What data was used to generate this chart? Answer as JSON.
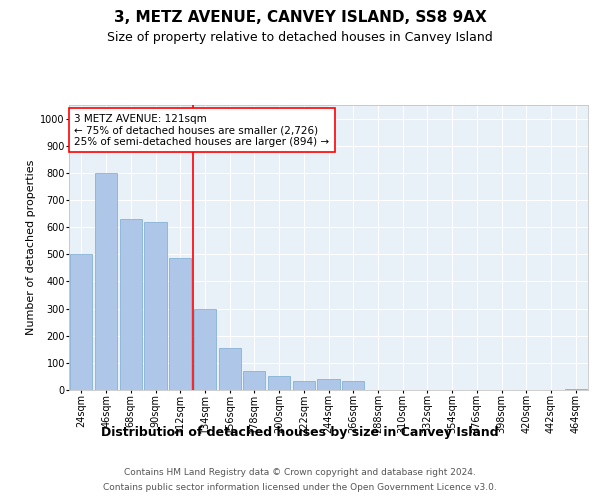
{
  "title": "3, METZ AVENUE, CANVEY ISLAND, SS8 9AX",
  "subtitle": "Size of property relative to detached houses in Canvey Island",
  "xlabel": "Distribution of detached houses by size in Canvey Island",
  "ylabel": "Number of detached properties",
  "footer_line1": "Contains HM Land Registry data © Crown copyright and database right 2024.",
  "footer_line2": "Contains public sector information licensed under the Open Government Licence v3.0.",
  "categories": [
    "24sqm",
    "46sqm",
    "68sqm",
    "90sqm",
    "112sqm",
    "134sqm",
    "156sqm",
    "178sqm",
    "200sqm",
    "222sqm",
    "244sqm",
    "266sqm",
    "288sqm",
    "310sqm",
    "332sqm",
    "354sqm",
    "376sqm",
    "398sqm",
    "420sqm",
    "442sqm",
    "464sqm"
  ],
  "values": [
    500,
    800,
    630,
    620,
    485,
    300,
    155,
    70,
    50,
    35,
    40,
    35,
    0,
    0,
    0,
    0,
    0,
    0,
    0,
    0,
    5
  ],
  "bar_color": "#aec6e8",
  "bar_edge_color": "#7aaad0",
  "ylim": [
    0,
    1050
  ],
  "yticks": [
    0,
    100,
    200,
    300,
    400,
    500,
    600,
    700,
    800,
    900,
    1000
  ],
  "red_line_index": 4.5,
  "annotation_box_text": "3 METZ AVENUE: 121sqm\n← 75% of detached houses are smaller (2,726)\n25% of semi-detached houses are larger (894) →",
  "bg_color": "#e8f0f8",
  "grid_color": "#ffffff",
  "title_fontsize": 11,
  "subtitle_fontsize": 9,
  "xlabel_fontsize": 9,
  "ylabel_fontsize": 8,
  "tick_fontsize": 7,
  "annotation_fontsize": 7.5,
  "footer_fontsize": 6.5
}
